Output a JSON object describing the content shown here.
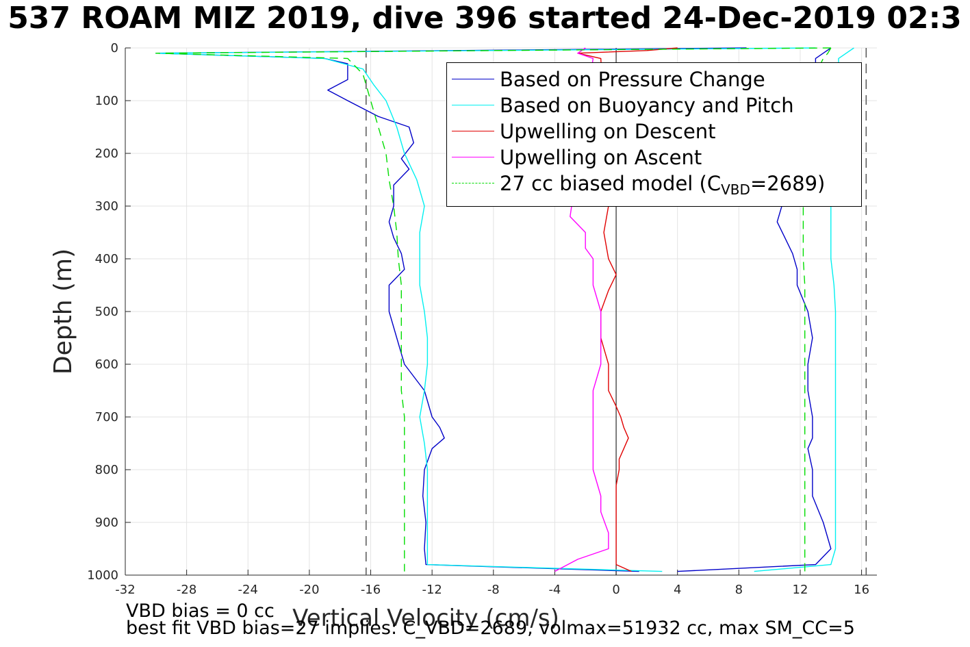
{
  "title": "537 ROAM MIZ 2019, dive 396 started 24-Dec-2019 02:3",
  "footer": {
    "line1": "VBD bias = 0 cc",
    "line2": "best fit VBD bias=27 implies: C_VBD=2689, volmax=51932 cc, max SM_CC=5"
  },
  "legend": {
    "items": [
      {
        "label": "Based on Pressure Change"
      },
      {
        "label": "Based on Buoyancy and Pitch"
      },
      {
        "label": "Upwelling on Descent"
      },
      {
        "label": "Upwelling on Ascent"
      },
      {
        "label_pre": "27 cc biased model (C",
        "label_sub": "VBD",
        "label_post": "=2689)"
      }
    ]
  },
  "chart_data": {
    "type": "line",
    "xlabel": "Vertical Velocity (cm/s)",
    "ylabel": "Depth (m)",
    "xlim": [
      -32,
      17
    ],
    "ylim": [
      0,
      1000
    ],
    "y_reversed": true,
    "grid": true,
    "legend_position": "top-right",
    "x_ticks": [
      "-32",
      "-28",
      "-24",
      "-20",
      "-16",
      "-12",
      "-8",
      "-4",
      "0",
      "4",
      "8",
      "12",
      "16"
    ],
    "y_ticks": [
      "0",
      "100",
      "200",
      "300",
      "400",
      "500",
      "600",
      "700",
      "800",
      "900",
      "1000"
    ],
    "reference_lines": [
      {
        "x": -16.3,
        "style": "dashed",
        "color": "#555555"
      },
      {
        "x": 16.3,
        "style": "dashed",
        "color": "#555555"
      },
      {
        "x": 0,
        "style": "solid",
        "color": "#000000"
      }
    ],
    "series": [
      {
        "name": "Based on Pressure Change",
        "color": "#0000c8",
        "dash": "",
        "depth": [
          0,
          10,
          20,
          30,
          60,
          80,
          100,
          130,
          150,
          180,
          210,
          230,
          260,
          300,
          330,
          360,
          390,
          420,
          450,
          500,
          550,
          600,
          650,
          700,
          720,
          740,
          760,
          800,
          850,
          900,
          950,
          980,
          993
        ],
        "descent": [
          8.5,
          -30,
          -19,
          -17.5,
          -17.5,
          -18.8,
          -17.5,
          -15.5,
          -13.5,
          -13.2,
          -14.0,
          -13.5,
          -14.5,
          -14.5,
          -14.8,
          -14.5,
          -14.0,
          -13.8,
          -14.8,
          -14.8,
          -14.3,
          -13.8,
          -12.5,
          -12.0,
          -11.5,
          -11.2,
          -12.0,
          -12.5,
          -12.6,
          -12.4,
          -12.5,
          -12.4,
          1.5
        ],
        "ascent": [
          14.0,
          13.5,
          13.0,
          13.0,
          13.0,
          13.0,
          13.0,
          13.0,
          12.8,
          12.5,
          12.0,
          11.5,
          11.0,
          10.8,
          10.5,
          11.0,
          11.5,
          11.8,
          11.8,
          12.5,
          12.8,
          12.5,
          12.5,
          12.8,
          12.8,
          12.8,
          12.5,
          12.8,
          12.8,
          13.5,
          14.0,
          13.0,
          4.0
        ]
      },
      {
        "name": "Based on Buoyancy and Pitch",
        "color": "#00f0f0",
        "dash": "",
        "depth": [
          0,
          10,
          20,
          40,
          70,
          100,
          150,
          200,
          250,
          300,
          350,
          400,
          450,
          500,
          550,
          600,
          650,
          700,
          750,
          800,
          850,
          900,
          950,
          980,
          993
        ],
        "descent": [
          13,
          -30,
          -19,
          -16.5,
          -15.8,
          -15.0,
          -14.3,
          -13.8,
          -13.0,
          -12.5,
          -12.8,
          -12.8,
          -12.8,
          -12.5,
          -12.3,
          -12.3,
          -12.5,
          -12.8,
          -12.5,
          -12.3,
          -12.3,
          -12.3,
          -12.3,
          -12.3,
          3.0
        ],
        "ascent": [
          15.5,
          15.0,
          14.5,
          14.5,
          14.5,
          14.5,
          14.5,
          14.5,
          14.3,
          14.0,
          14.0,
          14.0,
          14.2,
          14.3,
          14.3,
          14.3,
          14.3,
          14.3,
          14.3,
          14.3,
          14.3,
          14.3,
          14.3,
          14.0,
          9.0
        ]
      },
      {
        "name": "Upwelling on Descent",
        "color": "#e00000",
        "dash": "",
        "depth": [
          0,
          5,
          10,
          20,
          300,
          350,
          400,
          430,
          460,
          500,
          550,
          600,
          650,
          680,
          700,
          720,
          740,
          760,
          780,
          800,
          830,
          860,
          900,
          930,
          960,
          980,
          993
        ],
        "values": [
          4.0,
          2.0,
          -2.5,
          -1.0,
          -0.5,
          -0.8,
          -0.5,
          0.0,
          -0.5,
          -1.0,
          -1.0,
          -0.5,
          -0.5,
          0.0,
          0.3,
          0.5,
          0.8,
          0.5,
          0.2,
          0.2,
          0.0,
          0.0,
          0.0,
          0.0,
          0.0,
          0.0,
          1.0
        ]
      },
      {
        "name": "Upwelling on Ascent",
        "color": "#ff00ff",
        "dash": "",
        "depth": [
          0,
          10,
          20,
          320,
          350,
          380,
          400,
          450,
          500,
          550,
          600,
          650,
          700,
          750,
          800,
          850,
          880,
          920,
          950,
          970,
          993
        ],
        "values": [
          -2.0,
          -2.5,
          -1.5,
          -3.0,
          -2.0,
          -2.0,
          -1.5,
          -1.5,
          -1.0,
          -1.0,
          -1.0,
          -1.5,
          -1.5,
          -1.5,
          -1.5,
          -1.0,
          -1.0,
          -0.5,
          -0.5,
          -2.5,
          -4.0
        ]
      },
      {
        "name": "27 cc biased model (CVBD=2689)",
        "color": "#00dd00",
        "dash": "12,8",
        "depth": [
          0,
          10,
          20,
          50,
          100,
          150,
          200,
          250,
          300,
          350,
          400,
          450,
          500,
          550,
          600,
          650,
          700,
          750,
          800,
          850,
          900,
          950,
          993
        ],
        "descent": [
          14,
          -30,
          -17.5,
          -16.5,
          -16.0,
          -15.5,
          -15.0,
          -14.8,
          -14.5,
          -14.3,
          -14.2,
          -14.0,
          -14.0,
          -14.0,
          -14.0,
          -14.0,
          -13.8,
          -13.8,
          -13.8,
          -13.8,
          -13.8,
          -13.8,
          -13.8
        ],
        "ascent": [
          14.0,
          13.8,
          13.5,
          13.0,
          12.8,
          12.5,
          12.3,
          12.3,
          12.2,
          12.2,
          12.2,
          12.3,
          12.3,
          12.3,
          12.3,
          12.3,
          12.3,
          12.3,
          12.3,
          12.3,
          12.3,
          12.3,
          12.3
        ]
      }
    ]
  }
}
